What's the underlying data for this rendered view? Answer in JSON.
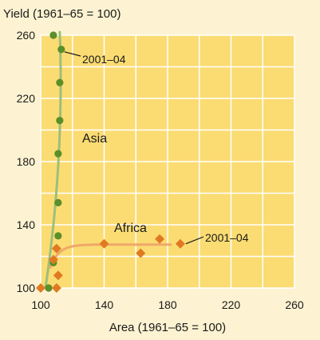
{
  "chart_data": {
    "type": "scatter",
    "title": "",
    "ylabel": "Yield (1961–65 = 100)",
    "xlabel": "Area (1961–65 = 100)",
    "xlim": [
      100,
      260
    ],
    "ylim": [
      100,
      260
    ],
    "xticks": [
      100,
      140,
      180,
      220,
      260
    ],
    "yticks": [
      100,
      140,
      180,
      220,
      260
    ],
    "xtick_labels": [
      "100",
      "140",
      "180",
      "220",
      "260"
    ],
    "ytick_labels": [
      "100",
      "140",
      "180",
      "220",
      "260"
    ],
    "grid": true,
    "colors": {
      "background": "#fdf3d2",
      "plot_background": "#fbdc73",
      "grid": "#ffffff",
      "asia": "#5a8f29",
      "asia_curve": "#9cbf7a",
      "africa": "#e07a22",
      "africa_curve": "#f0a86a"
    },
    "series": [
      {
        "name": "Asia",
        "marker": "circle",
        "color": "#5a8f29",
        "x": [
          108,
          113,
          112,
          112,
          111,
          111,
          111,
          108,
          105
        ],
        "y": [
          260,
          251,
          230,
          206,
          185,
          154,
          133,
          116,
          100
        ]
      },
      {
        "name": "Africa",
        "marker": "diamond",
        "color": "#e07a22",
        "x": [
          100,
          110,
          108,
          111,
          110,
          140,
          163,
          175,
          188
        ],
        "y": [
          100,
          100,
          118,
          108,
          125,
          128,
          122,
          131,
          128
        ]
      }
    ],
    "annotations": [
      {
        "text": "2001–04",
        "series": "Asia",
        "point_index": 1
      },
      {
        "text": "2001–04",
        "series": "Africa",
        "point_index": 8
      }
    ]
  }
}
